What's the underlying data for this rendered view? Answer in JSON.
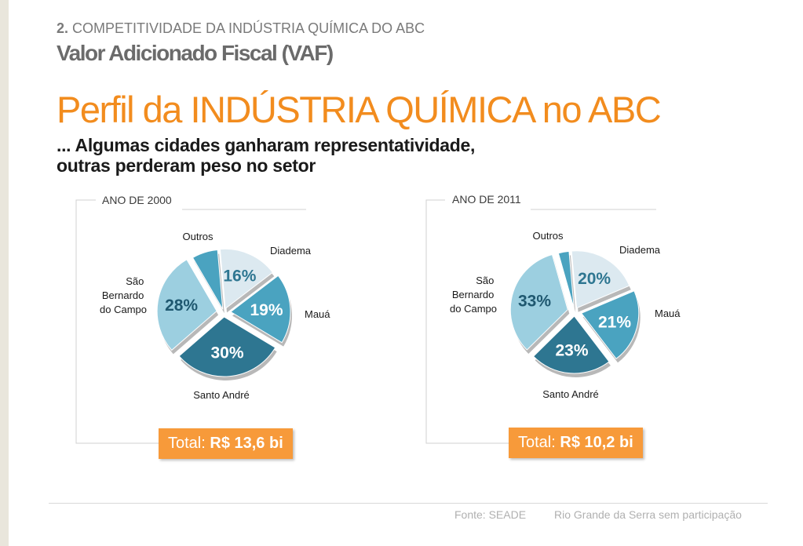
{
  "header": {
    "section_number": "2.",
    "section_title": "COMPETITIVIDADE DA INDÚSTRIA QUÍMICA DO ABC",
    "section_subtitle": "Valor Adicionado Fiscal (VAF)",
    "main_title": "Perfil da INDÚSTRIA QUÍMICA no ABC",
    "subtitle_line1": "... Algumas cidades ganharam representatividade,",
    "subtitle_line2": "outras perderam peso no setor"
  },
  "chart_data": [
    {
      "type": "pie",
      "title": "ANO DE 2000",
      "slices": [
        {
          "label": "Diadema",
          "value": 16,
          "pct_label": "16%",
          "color": "#dce9f0"
        },
        {
          "label": "Mauá",
          "value": 19,
          "pct_label": "19%",
          "color": "#4aa3c0"
        },
        {
          "label": "Santo André",
          "value": 30,
          "pct_label": "30%",
          "color": "#2e7691"
        },
        {
          "label": "São Bernardo do Campo",
          "value": 28,
          "pct_label": "28%",
          "color": "#9ccfe0"
        },
        {
          "label": "Outros",
          "value": 7,
          "pct_label": "",
          "color": "#4aa3c0"
        }
      ],
      "total_label": "Total:",
      "total_value": "R$ 13,6 bi"
    },
    {
      "type": "pie",
      "title": "ANO DE 2011",
      "slices": [
        {
          "label": "Diadema",
          "value": 20,
          "pct_label": "20%",
          "color": "#dce9f0"
        },
        {
          "label": "Mauá",
          "value": 21,
          "pct_label": "21%",
          "color": "#4aa3c0"
        },
        {
          "label": "Santo André",
          "value": 23,
          "pct_label": "23%",
          "color": "#2e7691"
        },
        {
          "label": "São Bernardo do Campo",
          "value": 33,
          "pct_label": "33%",
          "color": "#9ccfe0"
        },
        {
          "label": "Outros",
          "value": 3,
          "pct_label": "",
          "color": "#4aa3c0"
        }
      ],
      "total_label": "Total:",
      "total_value": "R$ 10,2 bi"
    }
  ],
  "footer": {
    "source": "Fonte: SEADE",
    "note": "Rio Grande da Serra sem participação"
  }
}
